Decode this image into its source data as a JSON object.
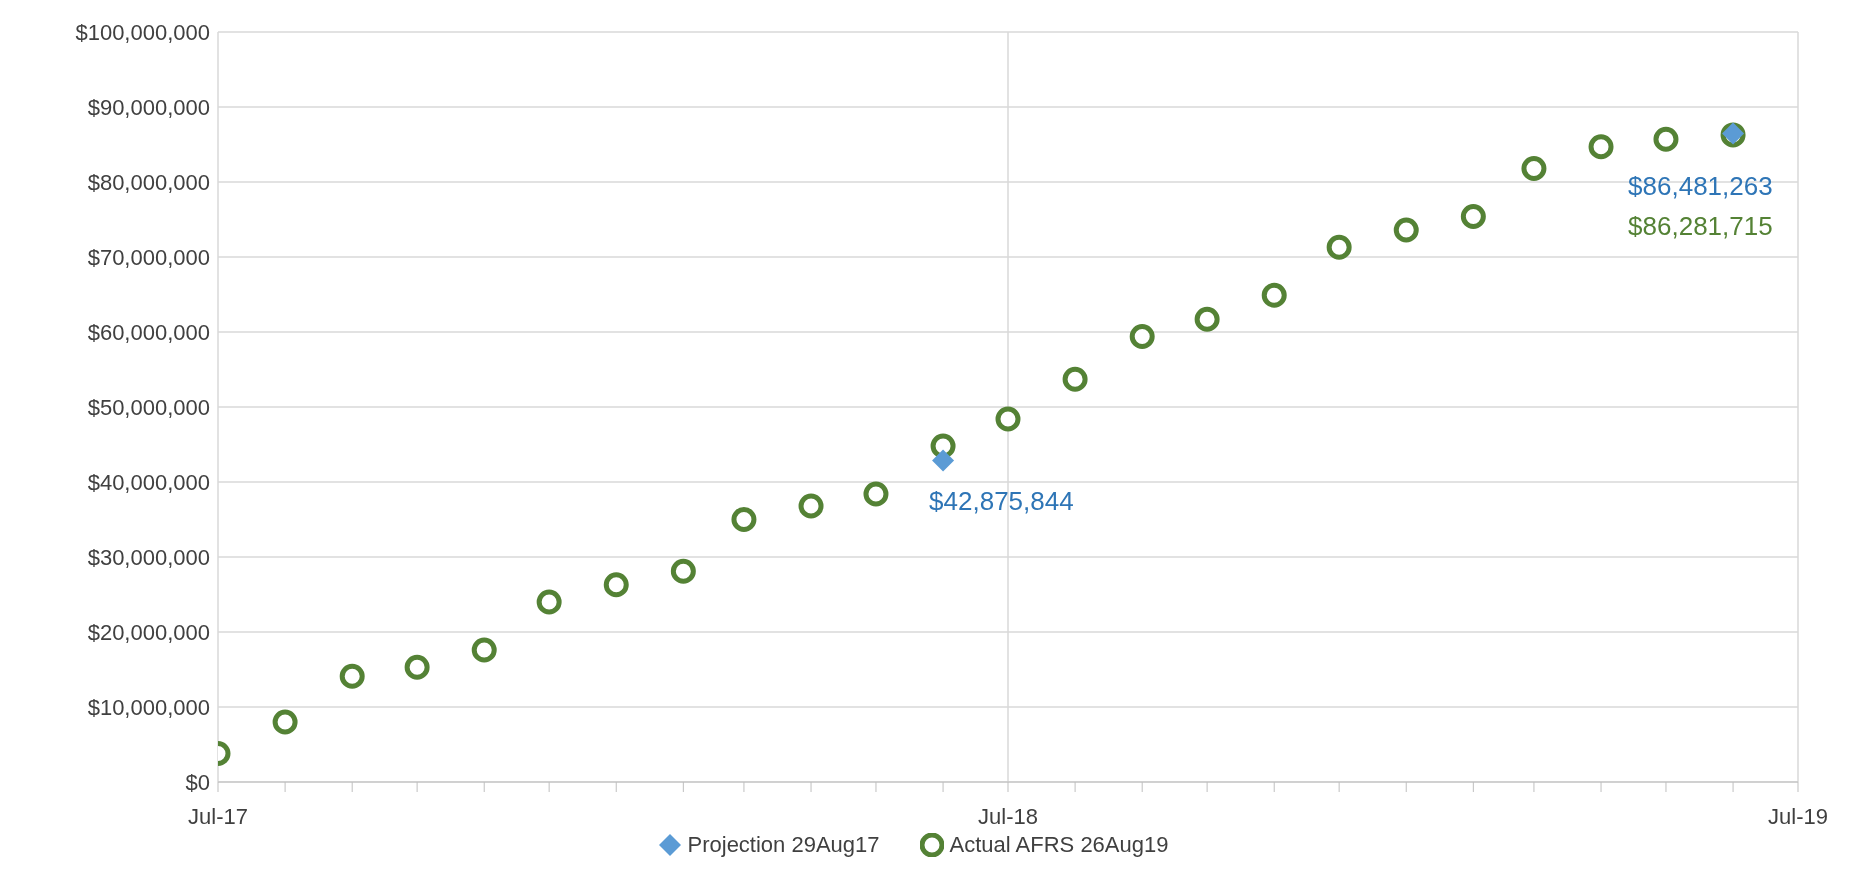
{
  "chart_data": {
    "type": "scatter",
    "xlim": [
      "2017-07",
      "2019-07"
    ],
    "xticks": [
      {
        "value": "2017-07",
        "label": "Jul-17"
      },
      {
        "value": "2017-08",
        "label": null
      },
      {
        "value": "2017-09",
        "label": null
      },
      {
        "value": "2017-10",
        "label": null
      },
      {
        "value": "2017-11",
        "label": null
      },
      {
        "value": "2017-12",
        "label": null
      },
      {
        "value": "2018-01",
        "label": null
      },
      {
        "value": "2018-02",
        "label": null
      },
      {
        "value": "2018-03",
        "label": null
      },
      {
        "value": "2018-04",
        "label": null
      },
      {
        "value": "2018-05",
        "label": null
      },
      {
        "value": "2018-06",
        "label": null
      },
      {
        "value": "2018-07",
        "label": "Jul-18"
      },
      {
        "value": "2018-08",
        "label": null
      },
      {
        "value": "2018-09",
        "label": null
      },
      {
        "value": "2018-10",
        "label": null
      },
      {
        "value": "2018-11",
        "label": null
      },
      {
        "value": "2018-12",
        "label": null
      },
      {
        "value": "2019-01",
        "label": null
      },
      {
        "value": "2019-02",
        "label": null
      },
      {
        "value": "2019-03",
        "label": null
      },
      {
        "value": "2019-04",
        "label": null
      },
      {
        "value": "2019-05",
        "label": null
      },
      {
        "value": "2019-06",
        "label": null
      },
      {
        "value": "2019-07",
        "label": "Jul-19"
      }
    ],
    "ylim": [
      0,
      100000000
    ],
    "yticks": [
      {
        "value": 0,
        "label": "$0"
      },
      {
        "value": 10000000,
        "label": "$10,000,000"
      },
      {
        "value": 20000000,
        "label": "$20,000,000"
      },
      {
        "value": 30000000,
        "label": "$30,000,000"
      },
      {
        "value": 40000000,
        "label": "$40,000,000"
      },
      {
        "value": 50000000,
        "label": "$50,000,000"
      },
      {
        "value": 60000000,
        "label": "$60,000,000"
      },
      {
        "value": 70000000,
        "label": "$70,000,000"
      },
      {
        "value": 80000000,
        "label": "$80,000,000"
      },
      {
        "value": 90000000,
        "label": "$90,000,000"
      },
      {
        "value": 100000000,
        "label": "$100,000,000"
      }
    ],
    "grid": true,
    "legend": "bottom",
    "series": [
      {
        "name": "Projection 29Aug17",
        "color": "#5b9bd5",
        "marker": "diamond",
        "x": [
          "2018-06",
          "2019-06"
        ],
        "values": [
          42875844,
          86481263
        ],
        "value_labels": [
          "$42,875,844",
          "$86,481,263"
        ]
      },
      {
        "name": "Actual AFRS 26Aug19",
        "color": "#548235",
        "marker": "circle",
        "x": [
          "2017-07",
          "2017-08",
          "2017-09",
          "2017-10",
          "2017-11",
          "2017-12",
          "2018-01",
          "2018-02",
          "2018-03",
          "2018-04",
          "2018-05",
          "2018-06",
          "2018-07",
          "2018-08",
          "2018-09",
          "2018-10",
          "2018-11",
          "2018-12",
          "2019-01",
          "2019-02",
          "2019-03",
          "2019-04",
          "2019-05",
          "2019-06"
        ],
        "values": [
          3800000,
          8000000,
          14100000,
          15300000,
          17600000,
          24000000,
          26300000,
          28100000,
          35000000,
          36800000,
          38400000,
          44800000,
          48400000,
          53700000,
          59400000,
          61700000,
          64900000,
          71300000,
          73600000,
          75400000,
          81800000,
          84700000,
          85700000,
          86281715
        ],
        "value_labels": [
          null,
          null,
          null,
          null,
          null,
          null,
          null,
          null,
          null,
          null,
          null,
          null,
          null,
          null,
          null,
          null,
          null,
          null,
          null,
          null,
          null,
          null,
          null,
          "$86,281,715"
        ]
      }
    ]
  }
}
